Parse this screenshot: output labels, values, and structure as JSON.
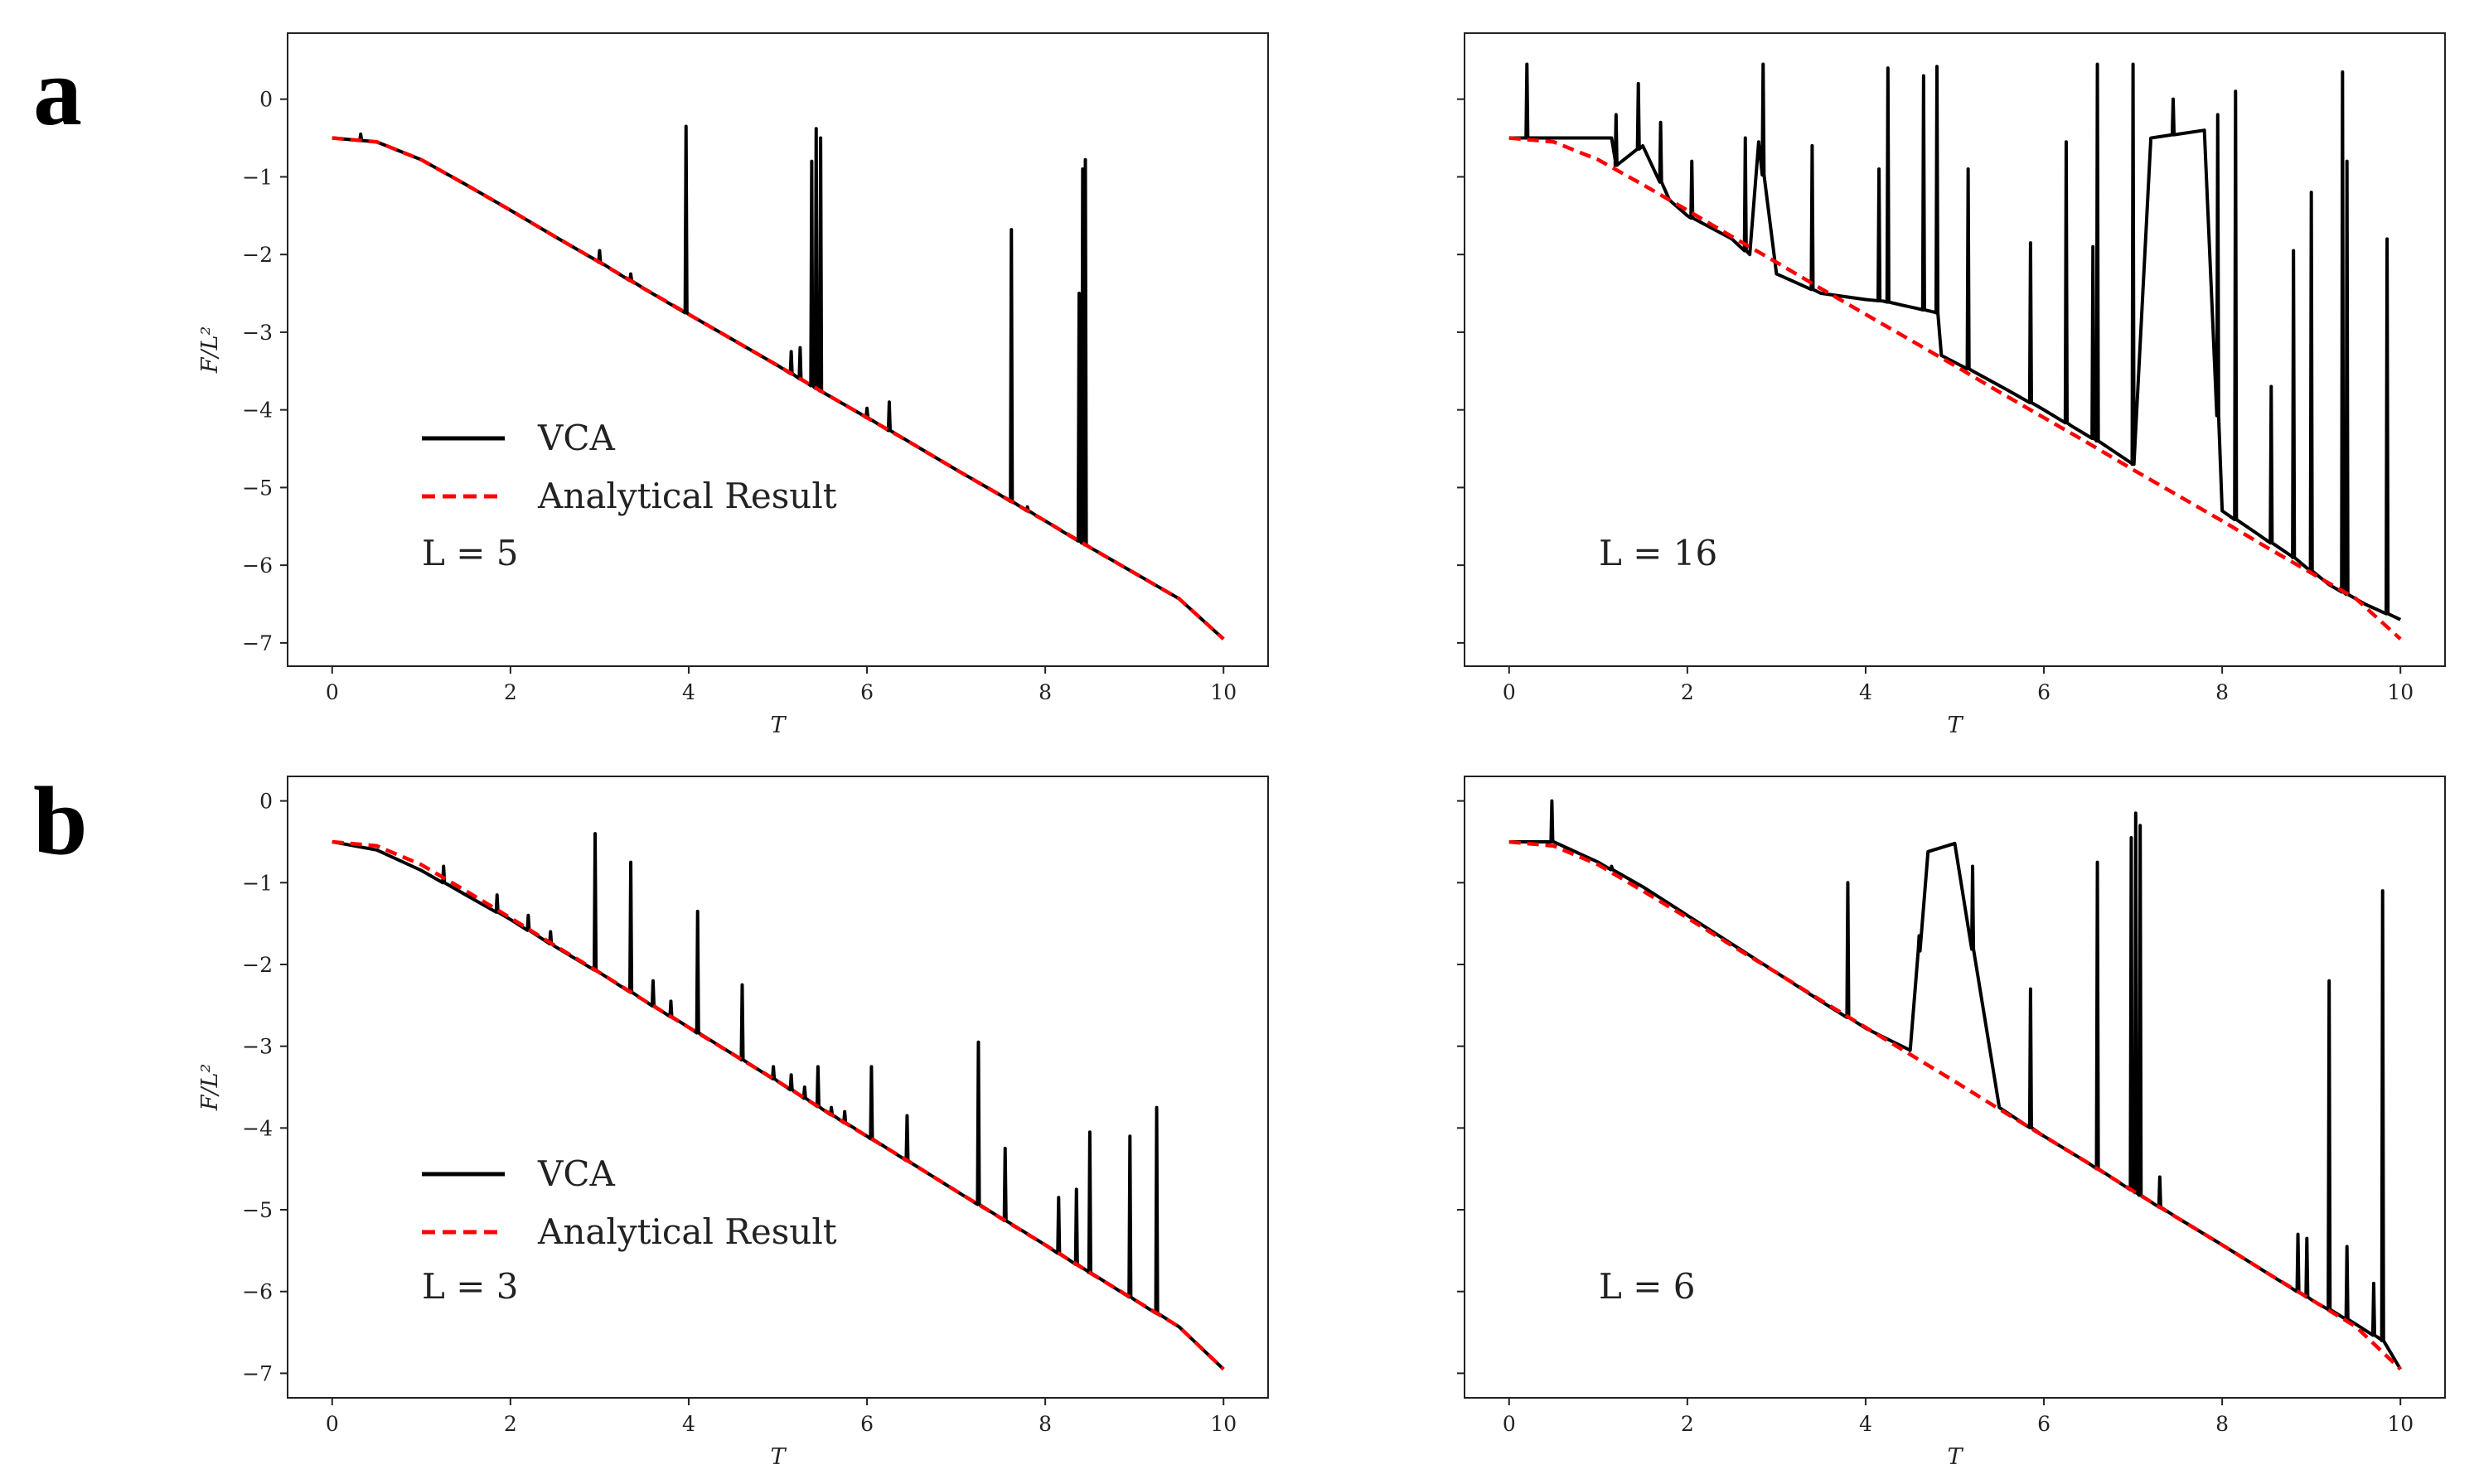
{
  "figure": {
    "panel_labels": [
      "a",
      "b"
    ]
  },
  "chart_data": [
    {
      "type": "line",
      "panel": "a",
      "position": "top-left",
      "title": "",
      "xlabel": "T",
      "ylabel": "F/L²",
      "xlim": [
        -0.5,
        10.5
      ],
      "ylim": [
        -7.3,
        0.85
      ],
      "xticks": [
        0,
        2,
        4,
        6,
        8,
        10
      ],
      "xtick_labels": [
        "0",
        "2",
        "4",
        "6",
        "8",
        "10"
      ],
      "yticks": [
        0,
        -1,
        -2,
        -3,
        -4,
        -5,
        -6,
        -7
      ],
      "ytick_labels": [
        "0",
        "−1",
        "−2",
        "−3",
        "−4",
        "−5",
        "−6",
        "−7"
      ],
      "show_yticklabels": true,
      "legend": {
        "entries": [
          "VCA",
          "Analytical Result"
        ],
        "colors": [
          "#000000",
          "#ff0000"
        ],
        "styles": [
          "solid",
          "dashed"
        ],
        "placement": "lower-left"
      },
      "annotation": "L = 5",
      "series": [
        {
          "name": "VCA",
          "color": "#000000",
          "style": "solid",
          "x": [
            0,
            0.5,
            1,
            1.5,
            2,
            2.5,
            3,
            3.5,
            4,
            4.5,
            5,
            5.5,
            6,
            6.5,
            7,
            7.5,
            8,
            8.5,
            9,
            9.5,
            10
          ],
          "y": [
            -0.5,
            -0.55,
            -0.78,
            -1.1,
            -1.43,
            -1.77,
            -2.1,
            -2.44,
            -2.77,
            -3.1,
            -3.43,
            -3.77,
            -4.1,
            -4.43,
            -4.77,
            -5.1,
            -5.43,
            -5.77,
            -6.1,
            -6.43,
            -6.95
          ],
          "spikes": [
            {
              "x": 0.32,
              "top": -0.45
            },
            {
              "x": 3.0,
              "top": -1.95
            },
            {
              "x": 3.35,
              "top": -2.25
            },
            {
              "x": 3.97,
              "top": -0.35
            },
            {
              "x": 5.15,
              "top": -3.25
            },
            {
              "x": 5.25,
              "top": -3.2
            },
            {
              "x": 5.38,
              "top": -0.8
            },
            {
              "x": 5.43,
              "top": -0.38
            },
            {
              "x": 5.48,
              "top": -0.5
            },
            {
              "x": 6.0,
              "top": -3.98
            },
            {
              "x": 6.25,
              "top": -3.9
            },
            {
              "x": 7.62,
              "top": -1.68
            },
            {
              "x": 7.8,
              "top": -5.25
            },
            {
              "x": 8.38,
              "top": -2.5
            },
            {
              "x": 8.42,
              "top": -0.9
            },
            {
              "x": 8.45,
              "top": -0.78
            }
          ]
        },
        {
          "name": "Analytical Result",
          "color": "#ff0000",
          "style": "dashed",
          "x": [
            0,
            0.5,
            1,
            1.5,
            2,
            2.5,
            3,
            3.5,
            4,
            4.5,
            5,
            5.5,
            6,
            6.5,
            7,
            7.5,
            8,
            8.5,
            9,
            9.5,
            10
          ],
          "y": [
            -0.5,
            -0.55,
            -0.78,
            -1.1,
            -1.43,
            -1.77,
            -2.1,
            -2.44,
            -2.77,
            -3.1,
            -3.43,
            -3.77,
            -4.1,
            -4.43,
            -4.77,
            -5.1,
            -5.43,
            -5.77,
            -6.1,
            -6.43,
            -6.95
          ]
        }
      ]
    },
    {
      "type": "line",
      "panel": "a",
      "position": "top-right",
      "title": "",
      "xlabel": "T",
      "ylabel": "",
      "xlim": [
        -0.5,
        10.5
      ],
      "ylim": [
        -7.3,
        0.85
      ],
      "xticks": [
        0,
        2,
        4,
        6,
        8,
        10
      ],
      "xtick_labels": [
        "0",
        "2",
        "4",
        "6",
        "8",
        "10"
      ],
      "yticks": [
        0,
        -1,
        -2,
        -3,
        -4,
        -5,
        -6,
        -7
      ],
      "ytick_labels": [],
      "show_yticklabels": false,
      "legend": null,
      "annotation": "L = 16",
      "series": [
        {
          "name": "VCA",
          "color": "#000000",
          "style": "solid",
          "x": [
            0,
            0.2,
            0.6,
            1.15,
            1.2,
            1.5,
            1.8,
            1.85,
            2.0,
            2.5,
            2.7,
            2.8,
            3.0,
            3.1,
            3.5,
            4.0,
            4.2,
            4.4,
            4.6,
            4.8,
            4.85,
            5.2,
            5.6,
            6.0,
            6.3,
            6.6,
            7.0,
            7.2,
            7.8,
            8.0,
            8.4,
            8.8,
            9.2,
            9.6,
            10
          ],
          "y": [
            -0.5,
            -0.5,
            -0.5,
            -0.5,
            -0.85,
            -0.6,
            -1.3,
            -1.35,
            -1.5,
            -1.8,
            -2.0,
            -0.55,
            -2.25,
            -2.3,
            -2.5,
            -2.58,
            -2.6,
            -2.65,
            -2.7,
            -2.75,
            -3.3,
            -3.5,
            -3.75,
            -4.0,
            -4.2,
            -4.4,
            -4.7,
            -0.5,
            -0.4,
            -5.3,
            -5.6,
            -5.9,
            -6.25,
            -6.5,
            -6.7
          ],
          "spikes": [
            {
              "x": 0.2,
              "top": 0.45
            },
            {
              "x": 1.2,
              "top": -0.2
            },
            {
              "x": 1.45,
              "top": 0.2
            },
            {
              "x": 1.7,
              "top": -0.3
            },
            {
              "x": 2.05,
              "top": -0.8
            },
            {
              "x": 2.65,
              "top": -0.5
            },
            {
              "x": 2.85,
              "top": 0.45
            },
            {
              "x": 3.4,
              "top": -0.6
            },
            {
              "x": 4.15,
              "top": -0.9
            },
            {
              "x": 4.25,
              "top": 0.4
            },
            {
              "x": 4.65,
              "top": 0.3
            },
            {
              "x": 4.8,
              "top": 0.42
            },
            {
              "x": 5.15,
              "top": -0.9
            },
            {
              "x": 5.85,
              "top": -1.85
            },
            {
              "x": 6.25,
              "top": -0.55
            },
            {
              "x": 6.55,
              "top": -1.9
            },
            {
              "x": 6.6,
              "top": 0.45
            },
            {
              "x": 7.0,
              "top": 0.45
            },
            {
              "x": 7.45,
              "top": 0.0
            },
            {
              "x": 7.95,
              "top": -0.2
            },
            {
              "x": 8.15,
              "top": 0.1
            },
            {
              "x": 8.55,
              "top": -3.7
            },
            {
              "x": 8.8,
              "top": -1.95
            },
            {
              "x": 9.0,
              "top": -1.2
            },
            {
              "x": 9.35,
              "top": 0.35
            },
            {
              "x": 9.4,
              "top": -0.8
            },
            {
              "x": 9.85,
              "top": -1.8
            }
          ]
        },
        {
          "name": "Analytical Result",
          "color": "#ff0000",
          "style": "dashed",
          "x": [
            0,
            0.5,
            1,
            1.5,
            2,
            2.5,
            3,
            3.5,
            4,
            4.5,
            5,
            5.5,
            6,
            6.5,
            7,
            7.5,
            8,
            8.5,
            9,
            9.5,
            10
          ],
          "y": [
            -0.5,
            -0.55,
            -0.78,
            -1.1,
            -1.43,
            -1.77,
            -2.1,
            -2.44,
            -2.77,
            -3.1,
            -3.43,
            -3.77,
            -4.1,
            -4.43,
            -4.77,
            -5.1,
            -5.43,
            -5.77,
            -6.1,
            -6.43,
            -6.95
          ]
        }
      ]
    },
    {
      "type": "line",
      "panel": "b",
      "position": "bottom-left",
      "title": "",
      "xlabel": "T",
      "ylabel": "F/L²",
      "xlim": [
        -0.5,
        10.5
      ],
      "ylim": [
        -7.3,
        0.3
      ],
      "xticks": [
        0,
        2,
        4,
        6,
        8,
        10
      ],
      "xtick_labels": [
        "0",
        "2",
        "4",
        "6",
        "8",
        "10"
      ],
      "yticks": [
        0,
        -1,
        -2,
        -3,
        -4,
        -5,
        -6,
        -7
      ],
      "ytick_labels": [
        "0",
        "−1",
        "−2",
        "−3",
        "−4",
        "−5",
        "−6",
        "−7"
      ],
      "show_yticklabels": true,
      "legend": {
        "entries": [
          "VCA",
          "Analytical Result"
        ],
        "colors": [
          "#000000",
          "#ff0000"
        ],
        "styles": [
          "solid",
          "dashed"
        ],
        "placement": "lower-left"
      },
      "annotation": "L = 3",
      "series": [
        {
          "name": "VCA",
          "color": "#000000",
          "style": "solid",
          "x": [
            0,
            0.5,
            1,
            1.5,
            2,
            2.5,
            3,
            3.5,
            4,
            4.5,
            5,
            5.5,
            6,
            6.5,
            7,
            7.5,
            8,
            8.5,
            9,
            9.5,
            10
          ],
          "y": [
            -0.5,
            -0.6,
            -0.85,
            -1.15,
            -1.45,
            -1.78,
            -2.1,
            -2.44,
            -2.77,
            -3.1,
            -3.43,
            -3.77,
            -4.1,
            -4.43,
            -4.77,
            -5.1,
            -5.43,
            -5.77,
            -6.1,
            -6.43,
            -6.95
          ],
          "spikes": [
            {
              "x": 1.25,
              "top": -0.8
            },
            {
              "x": 1.85,
              "top": -1.15
            },
            {
              "x": 2.2,
              "top": -1.4
            },
            {
              "x": 2.45,
              "top": -1.6
            },
            {
              "x": 2.95,
              "top": -0.4
            },
            {
              "x": 3.35,
              "top": -0.75
            },
            {
              "x": 3.6,
              "top": -2.2
            },
            {
              "x": 3.8,
              "top": -2.45
            },
            {
              "x": 4.1,
              "top": -1.35
            },
            {
              "x": 4.6,
              "top": -2.25
            },
            {
              "x": 4.95,
              "top": -3.25
            },
            {
              "x": 5.15,
              "top": -3.35
            },
            {
              "x": 5.3,
              "top": -3.5
            },
            {
              "x": 5.45,
              "top": -3.25
            },
            {
              "x": 5.6,
              "top": -3.75
            },
            {
              "x": 5.75,
              "top": -3.8
            },
            {
              "x": 6.05,
              "top": -3.25
            },
            {
              "x": 6.45,
              "top": -3.85
            },
            {
              "x": 7.25,
              "top": -2.95
            },
            {
              "x": 7.55,
              "top": -4.25
            },
            {
              "x": 8.15,
              "top": -4.85
            },
            {
              "x": 8.35,
              "top": -4.75
            },
            {
              "x": 8.5,
              "top": -4.05
            },
            {
              "x": 8.95,
              "top": -4.1
            },
            {
              "x": 9.25,
              "top": -3.75
            }
          ]
        },
        {
          "name": "Analytical Result",
          "color": "#ff0000",
          "style": "dashed",
          "x": [
            0,
            0.5,
            1,
            1.5,
            2,
            2.5,
            3,
            3.5,
            4,
            4.5,
            5,
            5.5,
            6,
            6.5,
            7,
            7.5,
            8,
            8.5,
            9,
            9.5,
            10
          ],
          "y": [
            -0.5,
            -0.55,
            -0.78,
            -1.1,
            -1.43,
            -1.77,
            -2.1,
            -2.44,
            -2.77,
            -3.1,
            -3.43,
            -3.77,
            -4.1,
            -4.43,
            -4.77,
            -5.1,
            -5.43,
            -5.77,
            -6.1,
            -6.43,
            -6.95
          ]
        }
      ]
    },
    {
      "type": "line",
      "panel": "b",
      "position": "bottom-right",
      "title": "",
      "xlabel": "T",
      "ylabel": "",
      "xlim": [
        -0.5,
        10.5
      ],
      "ylim": [
        -7.3,
        0.3
      ],
      "xticks": [
        0,
        2,
        4,
        6,
        8,
        10
      ],
      "xtick_labels": [
        "0",
        "2",
        "4",
        "6",
        "8",
        "10"
      ],
      "yticks": [
        0,
        -1,
        -2,
        -3,
        -4,
        -5,
        -6,
        -7
      ],
      "ytick_labels": [],
      "show_yticklabels": false,
      "legend": null,
      "annotation": "L = 6",
      "series": [
        {
          "name": "VCA",
          "color": "#000000",
          "style": "solid",
          "x": [
            0,
            0.5,
            1,
            1.5,
            2,
            2.5,
            3,
            3.5,
            4,
            4.5,
            4.7,
            5.0,
            5.5,
            6,
            6.5,
            7,
            7.5,
            8,
            8.5,
            9,
            9.5,
            9.8,
            10
          ],
          "y": [
            -0.5,
            -0.5,
            -0.75,
            -1.05,
            -1.4,
            -1.75,
            -2.1,
            -2.45,
            -2.78,
            -3.05,
            -0.62,
            -0.52,
            -3.75,
            -4.1,
            -4.43,
            -4.77,
            -5.1,
            -5.43,
            -5.77,
            -6.1,
            -6.4,
            -6.6,
            -6.95
          ],
          "spikes": [
            {
              "x": 0.48,
              "top": 0.0
            },
            {
              "x": 1.15,
              "top": -0.8
            },
            {
              "x": 3.8,
              "top": -1.0
            },
            {
              "x": 4.6,
              "top": -1.65
            },
            {
              "x": 5.2,
              "top": -0.8
            },
            {
              "x": 5.85,
              "top": -2.3
            },
            {
              "x": 6.6,
              "top": -0.75
            },
            {
              "x": 6.98,
              "top": -0.45
            },
            {
              "x": 7.03,
              "top": -0.15
            },
            {
              "x": 7.08,
              "top": -0.3
            },
            {
              "x": 7.3,
              "top": -4.6
            },
            {
              "x": 8.85,
              "top": -5.3
            },
            {
              "x": 8.95,
              "top": -5.35
            },
            {
              "x": 9.2,
              "top": -2.2
            },
            {
              "x": 9.4,
              "top": -5.45
            },
            {
              "x": 9.7,
              "top": -5.9
            },
            {
              "x": 9.8,
              "top": -1.1
            }
          ]
        },
        {
          "name": "Analytical Result",
          "color": "#ff0000",
          "style": "dashed",
          "x": [
            0,
            0.5,
            1,
            1.5,
            2,
            2.5,
            3,
            3.5,
            4,
            4.5,
            5,
            5.5,
            6,
            6.5,
            7,
            7.5,
            8,
            8.5,
            9,
            9.5,
            10
          ],
          "y": [
            -0.5,
            -0.55,
            -0.78,
            -1.1,
            -1.43,
            -1.77,
            -2.1,
            -2.44,
            -2.77,
            -3.1,
            -3.43,
            -3.77,
            -4.1,
            -4.43,
            -4.77,
            -5.1,
            -5.43,
            -5.77,
            -6.1,
            -6.43,
            -6.95
          ]
        }
      ]
    }
  ]
}
